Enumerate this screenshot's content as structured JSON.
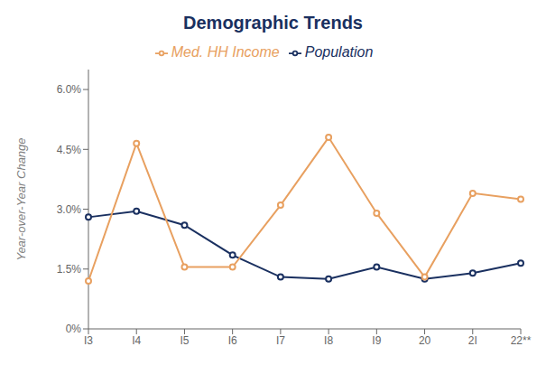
{
  "chart_data": {
    "type": "line",
    "title": "Demographic Trends",
    "ylabel": "Year-over-Year Change",
    "categories": [
      "I3",
      "I4",
      "I5",
      "I6",
      "I7",
      "I8",
      "I9",
      "20",
      "2I",
      "22**"
    ],
    "series": [
      {
        "name": "Population",
        "color": "#1a3060",
        "values": [
          2.8,
          2.95,
          2.6,
          1.85,
          1.3,
          1.25,
          1.55,
          1.25,
          1.4,
          1.65
        ]
      },
      {
        "name": "Med. HH Income",
        "color": "#e8a060",
        "values": [
          1.2,
          4.65,
          1.55,
          1.55,
          3.1,
          4.8,
          2.9,
          1.3,
          3.4,
          3.25
        ]
      }
    ],
    "ylim": [
      0.0,
      6.5
    ],
    "yticks": [
      {
        "value": 0.0,
        "label": "0%"
      },
      {
        "value": 1.5,
        "label": "1.5%"
      },
      {
        "value": 3.0,
        "label": "3.0%"
      },
      {
        "value": 4.5,
        "label": "4.5%"
      },
      {
        "value": 6.0,
        "label": "6.0%"
      }
    ],
    "grid": false,
    "legend": "top",
    "marker": "circle"
  }
}
